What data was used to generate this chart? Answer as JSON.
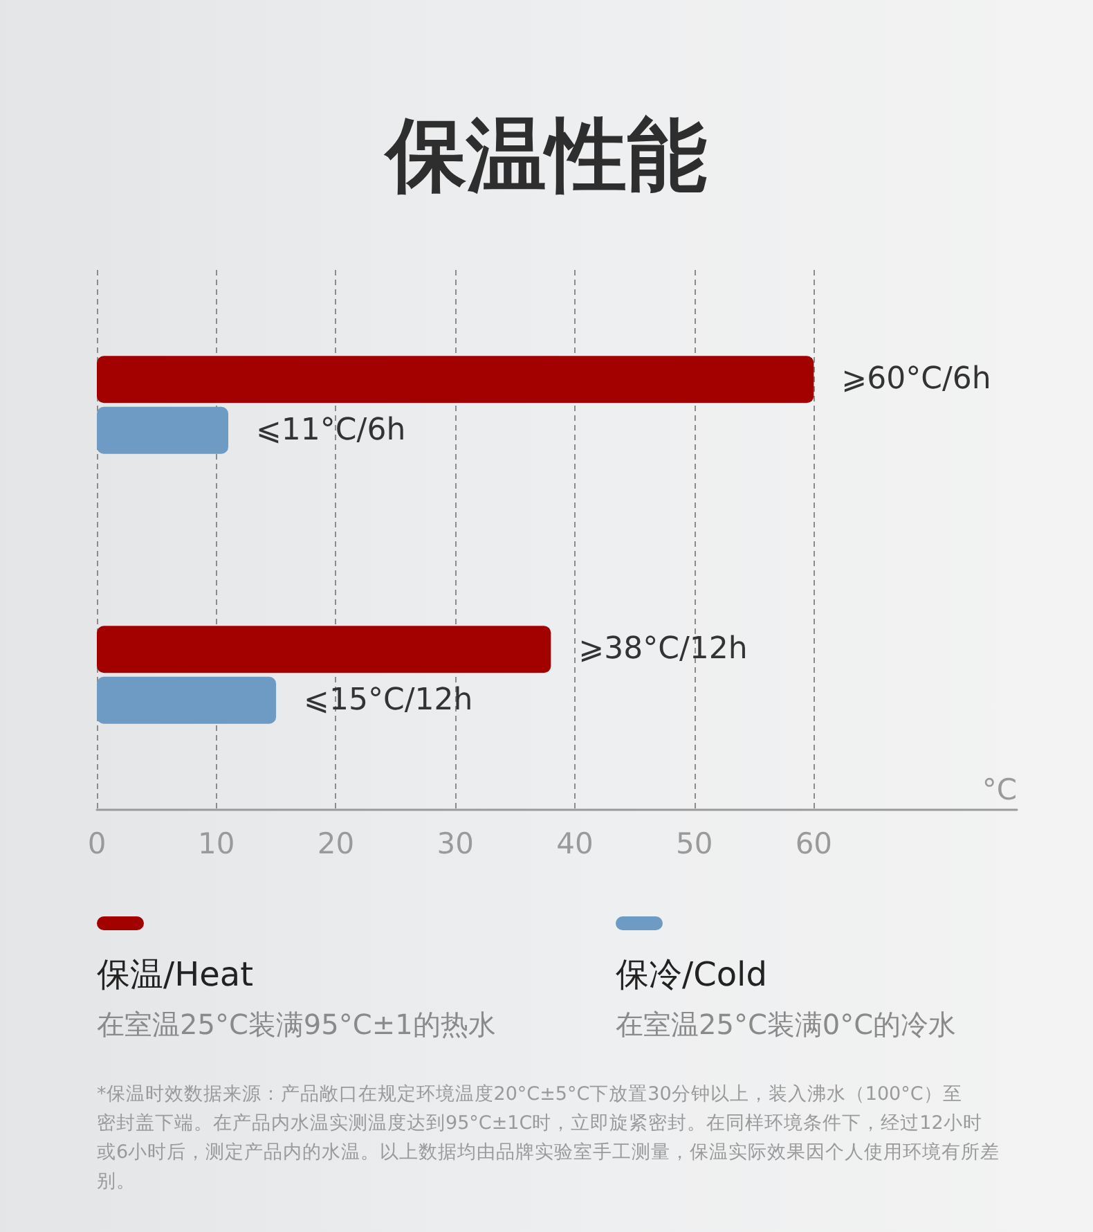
{
  "chart_data": {
    "type": "bar",
    "orientation": "horizontal",
    "title": "保温性能",
    "categories": [
      null,
      null
    ],
    "series": [
      {
        "name": "保温/Heat",
        "color": "#a30000",
        "values": [
          60,
          38
        ],
        "value_labels": [
          "⩾60°C/6h",
          "⩾38°C/12h"
        ]
      },
      {
        "name": "保冷/Cold",
        "color": "#6d9bc3",
        "values": [
          11,
          15
        ],
        "value_labels": [
          "⩽11°C/6h",
          "⩽15°C/12h"
        ]
      }
    ],
    "xlabel": "°C",
    "xlim": [
      0,
      77
    ],
    "xticks": [
      0,
      10,
      20,
      30,
      40,
      50,
      60
    ],
    "grid": "x",
    "legend": "bottom",
    "annotations": [
      "在室温25°C装满95°C±1的热水",
      "在室温25°C装满0°C的冷水",
      "*保温时效数据来源：产品敞口在规定环境温度20°C±5°C下放置30分钟以上，装入沸水（100°C）至密封盖下端。在产品内水温实测温度达到95°C±1C时，立即旋紧密封。在同样环境条件下，经过12小时或6小时后，测定产品内的水温。以上数据均由品牌实验室手工测量，保温实际效果因个人使用环境有所差别。"
    ]
  }
}
